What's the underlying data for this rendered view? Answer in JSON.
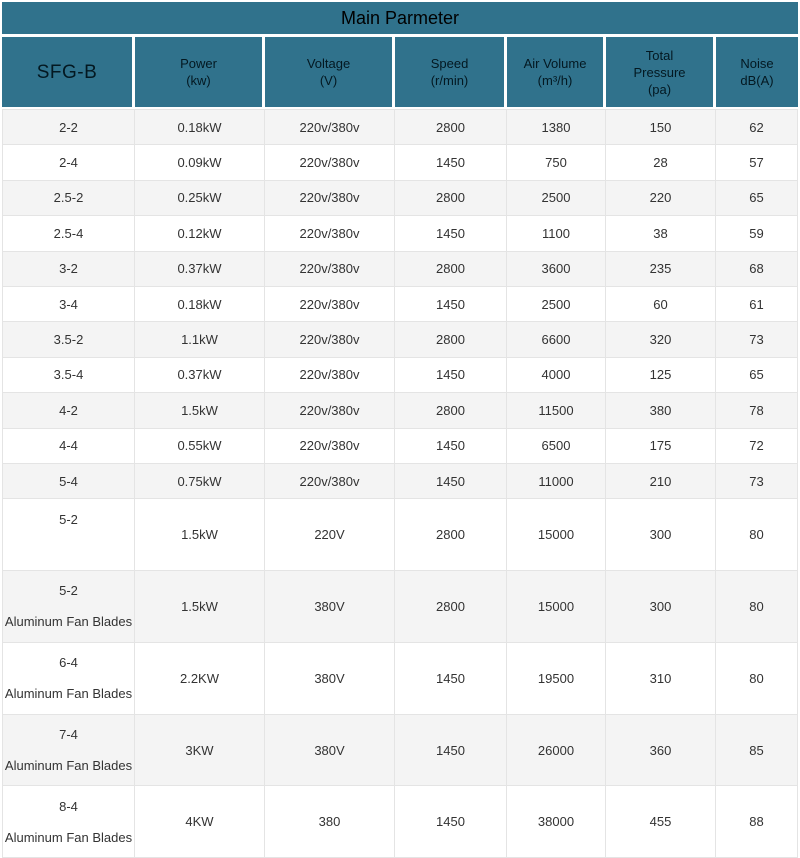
{
  "title": "Main Parmeter",
  "colors": {
    "header_bg": "#30728c",
    "header_text": "#000000",
    "row_bg": "#ffffff",
    "row_alt_bg": "#f4f4f4",
    "body_text": "#333333",
    "border": "#e4e4e4"
  },
  "table": {
    "columns": [
      {
        "key": "model",
        "lines": [
          "SFG-B"
        ]
      },
      {
        "key": "power",
        "lines": [
          "Power",
          "(kw)"
        ]
      },
      {
        "key": "voltage",
        "lines": [
          "Voltage",
          "(V)"
        ]
      },
      {
        "key": "speed",
        "lines": [
          "Speed",
          "(r/min)"
        ]
      },
      {
        "key": "air_volume",
        "lines": [
          "Air Volume",
          "(m³/h)"
        ]
      },
      {
        "key": "total_pressure",
        "lines": [
          "Total",
          "Pressure",
          "(pa)"
        ]
      },
      {
        "key": "noise",
        "lines": [
          "Noise",
          "dB(A)"
        ]
      }
    ],
    "rows": [
      {
        "model_lines": [
          "2-2"
        ],
        "power": "0.18kW",
        "voltage": "220v/380v",
        "speed": "2800",
        "air_volume": "1380",
        "total_pressure": "150",
        "noise": "62"
      },
      {
        "model_lines": [
          "2-4"
        ],
        "power": "0.09kW",
        "voltage": "220v/380v",
        "speed": "1450",
        "air_volume": "750",
        "total_pressure": "28",
        "noise": "57"
      },
      {
        "model_lines": [
          "2.5-2"
        ],
        "power": "0.25kW",
        "voltage": "220v/380v",
        "speed": "2800",
        "air_volume": "2500",
        "total_pressure": "220",
        "noise": "65"
      },
      {
        "model_lines": [
          "2.5-4"
        ],
        "power": "0.12kW",
        "voltage": "220v/380v",
        "speed": "1450",
        "air_volume": "1100",
        "total_pressure": "38",
        "noise": "59"
      },
      {
        "model_lines": [
          "3-2"
        ],
        "power": "0.37kW",
        "voltage": "220v/380v",
        "speed": "2800",
        "air_volume": "3600",
        "total_pressure": "235",
        "noise": "68"
      },
      {
        "model_lines": [
          "3-4"
        ],
        "power": "0.18kW",
        "voltage": "220v/380v",
        "speed": "1450",
        "air_volume": "2500",
        "total_pressure": "60",
        "noise": "61"
      },
      {
        "model_lines": [
          "3.5-2"
        ],
        "power": "1.1kW",
        "voltage": "220v/380v",
        "speed": "2800",
        "air_volume": "6600",
        "total_pressure": "320",
        "noise": "73"
      },
      {
        "model_lines": [
          "3.5-4"
        ],
        "power": "0.37kW",
        "voltage": "220v/380v",
        "speed": "1450",
        "air_volume": "4000",
        "total_pressure": "125",
        "noise": "65"
      },
      {
        "model_lines": [
          "4-2"
        ],
        "power": "1.5kW",
        "voltage": "220v/380v",
        "speed": "2800",
        "air_volume": "11500",
        "total_pressure": "380",
        "noise": "78"
      },
      {
        "model_lines": [
          "4-4"
        ],
        "power": "0.55kW",
        "voltage": "220v/380v",
        "speed": "1450",
        "air_volume": "6500",
        "total_pressure": "175",
        "noise": "72"
      },
      {
        "model_lines": [
          "5-4"
        ],
        "power": "0.75kW",
        "voltage": "220v/380v",
        "speed": "1450",
        "air_volume": "11000",
        "total_pressure": "210",
        "noise": "73"
      },
      {
        "model_lines": [
          "5-2",
          ""
        ],
        "power": "1.5kW",
        "voltage": "220V",
        "speed": "2800",
        "air_volume": "15000",
        "total_pressure": "300",
        "noise": "80"
      },
      {
        "model_lines": [
          "5-2",
          "Aluminum Fan Blades"
        ],
        "power": "1.5kW",
        "voltage": "380V",
        "speed": "2800",
        "air_volume": "15000",
        "total_pressure": "300",
        "noise": "80"
      },
      {
        "model_lines": [
          "6-4",
          "Aluminum Fan Blades"
        ],
        "power": "2.2KW",
        "voltage": "380V",
        "speed": "1450",
        "air_volume": "19500",
        "total_pressure": "310",
        "noise": "80"
      },
      {
        "model_lines": [
          "7-4",
          "Aluminum Fan Blades"
        ],
        "power": "3KW",
        "voltage": "380V",
        "speed": "1450",
        "air_volume": "26000",
        "total_pressure": "360",
        "noise": "85"
      },
      {
        "model_lines": [
          "8-4",
          "Aluminum Fan Blades"
        ],
        "power": "4KW",
        "voltage": "380",
        "speed": "1450",
        "air_volume": "38000",
        "total_pressure": "455",
        "noise": "88"
      }
    ]
  }
}
